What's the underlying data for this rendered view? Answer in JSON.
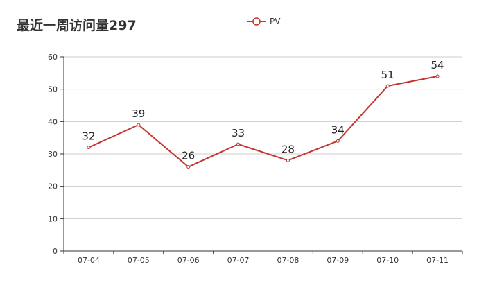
{
  "chart_data": {
    "type": "line",
    "title": "最近一周访问量297",
    "categories": [
      "07-04",
      "07-05",
      "07-06",
      "07-07",
      "07-08",
      "07-09",
      "07-10",
      "07-11"
    ],
    "series": [
      {
        "name": "PV",
        "values": [
          32,
          39,
          26,
          33,
          28,
          34,
          51,
          54
        ],
        "color": "#c23531"
      }
    ],
    "ylim": [
      0,
      60
    ],
    "yticks": [
      0,
      10,
      20,
      30,
      40,
      50,
      60
    ],
    "grid": true,
    "legend_position": "top-center",
    "data_labels": true
  }
}
